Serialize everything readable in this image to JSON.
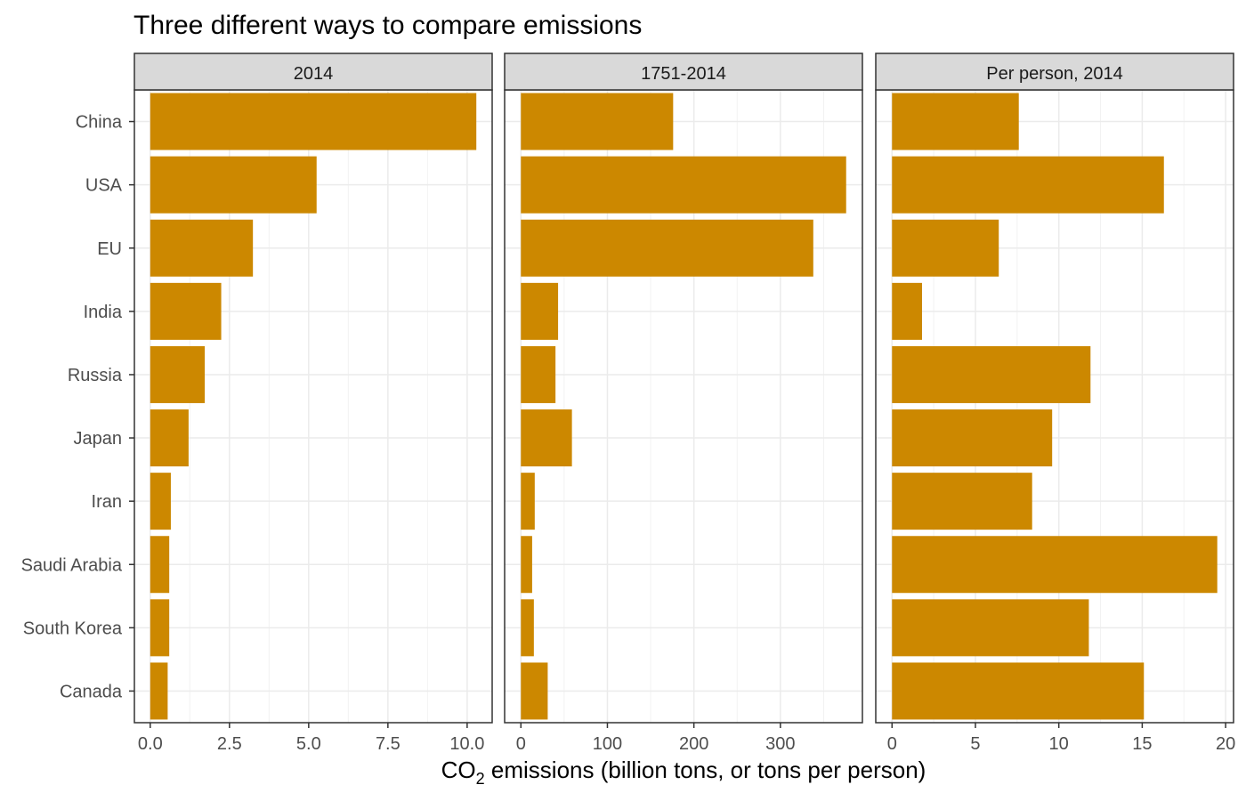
{
  "chart_data": {
    "type": "bar",
    "orientation": "horizontal",
    "title": "Three different ways to compare emissions",
    "xlabel": {
      "pre": "CO",
      "sub": "2",
      "post": " emissions (billion tons, or tons per person)"
    },
    "categories": [
      "China",
      "USA",
      "EU",
      "India",
      "Russia",
      "Japan",
      "Iran",
      "Saudi Arabia",
      "South Korea",
      "Canada"
    ],
    "bar_color": "#CC8800",
    "grid": true,
    "panels": [
      {
        "name": "2014",
        "values": [
          10.29,
          5.25,
          3.24,
          2.24,
          1.72,
          1.21,
          0.65,
          0.6,
          0.6,
          0.55
        ],
        "xlim": [
          -0.5,
          10.79
        ],
        "ticks": [
          0,
          2.5,
          5,
          7.5,
          10
        ],
        "tick_labels": [
          "0.0",
          "2.5",
          "5.0",
          "7.5",
          "10.0"
        ]
      },
      {
        "name": "1751-2014",
        "values": [
          176,
          376,
          338,
          43,
          40,
          59,
          16,
          13,
          15,
          31
        ],
        "xlim": [
          -18.8,
          394.8
        ],
        "ticks": [
          0,
          100,
          200,
          300
        ],
        "tick_labels": [
          "0",
          "100",
          "200",
          "300"
        ]
      },
      {
        "name": "Per person, 2014",
        "values": [
          7.6,
          16.3,
          6.4,
          1.8,
          11.9,
          9.6,
          8.4,
          19.5,
          11.8,
          15.1
        ],
        "xlim": [
          -0.975,
          20.475
        ],
        "ticks": [
          0,
          5,
          10,
          15,
          20
        ],
        "tick_labels": [
          "0",
          "5",
          "10",
          "15",
          "20"
        ]
      }
    ]
  }
}
